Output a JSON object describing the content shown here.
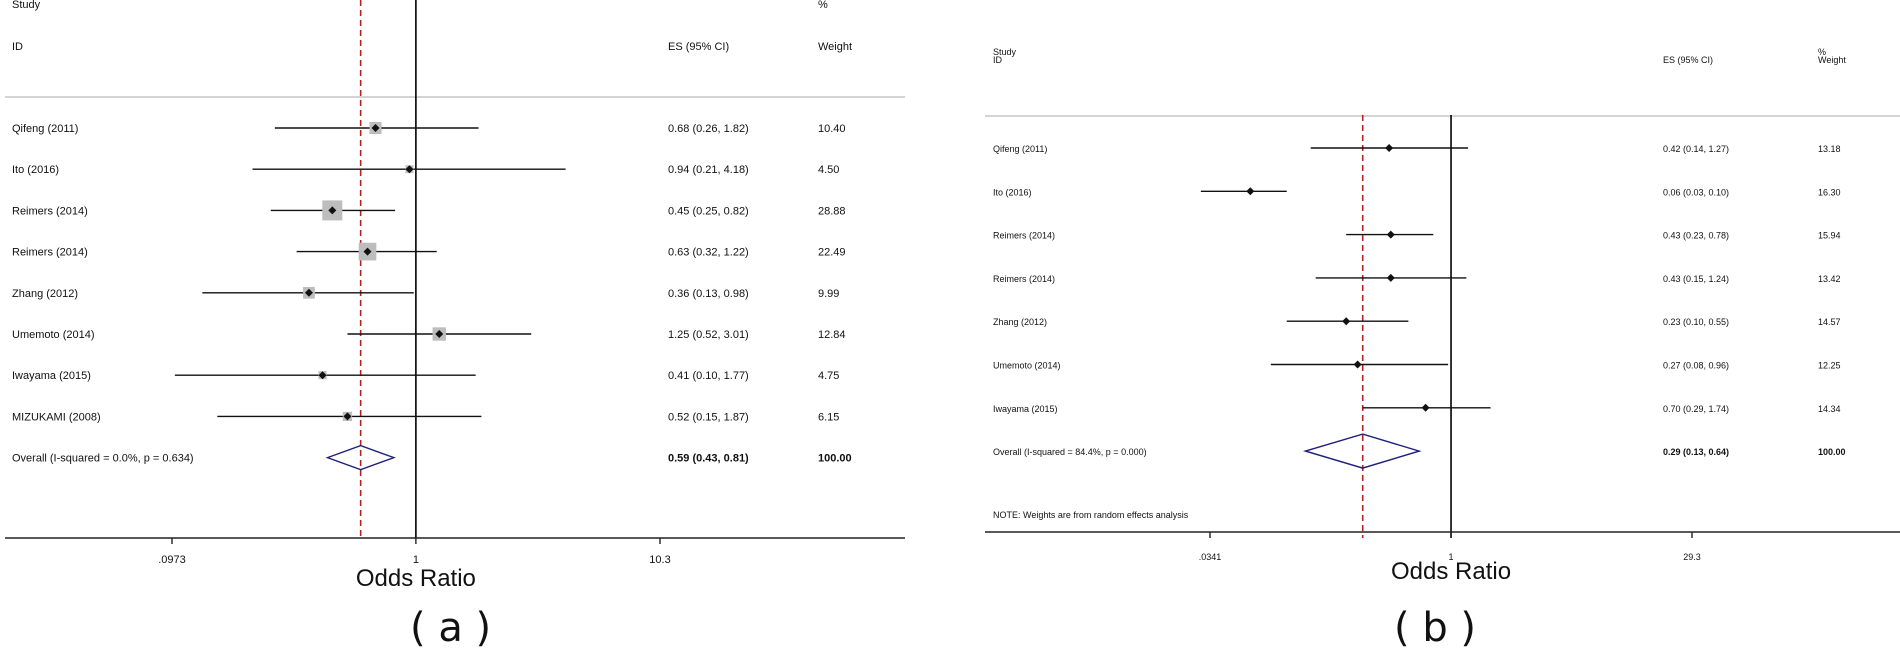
{
  "panels": [
    {
      "caption": "( a )",
      "header": {
        "study": "Study",
        "id": "ID",
        "es": "ES (95% CI)",
        "pct": "%",
        "weight": "Weight"
      },
      "xlabel": "Odds Ratio",
      "ticks": [
        ".0973",
        "1",
        "10.3"
      ],
      "note": ""
    },
    {
      "caption": "( b )",
      "header": {
        "study": "Study",
        "id": "ID",
        "es": "ES (95% CI)",
        "pct": "%",
        "weight": "Weight"
      },
      "xlabel": "Odds Ratio",
      "ticks": [
        ".0341",
        "1",
        "29.3"
      ],
      "note": "NOTE: Weights are from random effects analysis"
    }
  ],
  "chart_data": [
    {
      "type": "forest",
      "xlabel": "Odds Ratio",
      "scale": "log",
      "xlim": [
        0.0973,
        10.3
      ],
      "ticks": [
        0.0973,
        1,
        10.3
      ],
      "null_line": 1,
      "overall_line": 0.59,
      "studies": [
        {
          "label": "Qifeng  (2011)",
          "es": 0.68,
          "lo": 0.26,
          "hi": 1.82,
          "es_text": "0.68 (0.26, 1.82)",
          "weight": "10.40"
        },
        {
          "label": "Ito  (2016)",
          "es": 0.94,
          "lo": 0.21,
          "hi": 4.18,
          "es_text": "0.94 (0.21, 4.18)",
          "weight": "4.50"
        },
        {
          "label": "Reimers  (2014)",
          "es": 0.45,
          "lo": 0.25,
          "hi": 0.82,
          "es_text": "0.45 (0.25, 0.82)",
          "weight": "28.88"
        },
        {
          "label": "Reimers  (2014)",
          "es": 0.63,
          "lo": 0.32,
          "hi": 1.22,
          "es_text": "0.63 (0.32, 1.22)",
          "weight": "22.49"
        },
        {
          "label": "Zhang  (2012)",
          "es": 0.36,
          "lo": 0.13,
          "hi": 0.98,
          "es_text": "0.36 (0.13, 0.98)",
          "weight": "9.99"
        },
        {
          "label": "Umemoto (2014)",
          "es": 1.25,
          "lo": 0.52,
          "hi": 3.01,
          "es_text": "1.25 (0.52, 3.01)",
          "weight": "12.84"
        },
        {
          "label": "Iwayama  (2015)",
          "es": 0.41,
          "lo": 0.1,
          "hi": 1.77,
          "es_text": "0.41 (0.10, 1.77)",
          "weight": "4.75"
        },
        {
          "label": "MIZUKAMI (2008)",
          "es": 0.52,
          "lo": 0.15,
          "hi": 1.87,
          "es_text": "0.52 (0.15, 1.87)",
          "weight": "6.15"
        }
      ],
      "overall": {
        "label": "Overall  (I-squared = 0.0%, p = 0.634)",
        "es": 0.59,
        "lo": 0.43,
        "hi": 0.81,
        "es_text": "0.59 (0.43, 0.81)",
        "weight": "100.00"
      }
    },
    {
      "type": "forest",
      "xlabel": "Odds Ratio",
      "scale": "log",
      "xlim": [
        0.0341,
        29.3
      ],
      "ticks": [
        0.0341,
        1,
        29.3
      ],
      "null_line": 1,
      "overall_line": 0.29,
      "studies": [
        {
          "label": "Qifeng  (2011)",
          "es": 0.42,
          "lo": 0.14,
          "hi": 1.27,
          "es_text": "0.42 (0.14, 1.27)",
          "weight": "13.18"
        },
        {
          "label": "Ito  (2016)",
          "es": 0.06,
          "lo": 0.03,
          "hi": 0.1,
          "es_text": "0.06 (0.03, 0.10)",
          "weight": "16.30"
        },
        {
          "label": "Reimers  (2014)",
          "es": 0.43,
          "lo": 0.23,
          "hi": 0.78,
          "es_text": "0.43 (0.23, 0.78)",
          "weight": "15.94"
        },
        {
          "label": "Reimers  (2014)",
          "es": 0.43,
          "lo": 0.15,
          "hi": 1.24,
          "es_text": "0.43 (0.15, 1.24)",
          "weight": "13.42"
        },
        {
          "label": "Zhang  (2012)",
          "es": 0.23,
          "lo": 0.1,
          "hi": 0.55,
          "es_text": "0.23 (0.10, 0.55)",
          "weight": "14.57"
        },
        {
          "label": "Umemoto (2014)",
          "es": 0.27,
          "lo": 0.08,
          "hi": 0.96,
          "es_text": "0.27 (0.08, 0.96)",
          "weight": "12.25"
        },
        {
          "label": "Iwayama  (2015)",
          "es": 0.7,
          "lo": 0.29,
          "hi": 1.74,
          "es_text": "0.70 (0.29, 1.74)",
          "weight": "14.34"
        }
      ],
      "overall": {
        "label": "Overall  (I-squared = 84.4%, p = 0.000)",
        "es": 0.29,
        "lo": 0.13,
        "hi": 0.64,
        "es_text": "0.29 (0.13, 0.64)",
        "weight": "100.00"
      }
    }
  ],
  "colors": {
    "null_line": "#000000",
    "overall_line": "#b22222",
    "diamond": "#1f1f7a",
    "weight_box": "#bdbdbd",
    "axis": "#222222",
    "divider": "#aaaaaa"
  }
}
